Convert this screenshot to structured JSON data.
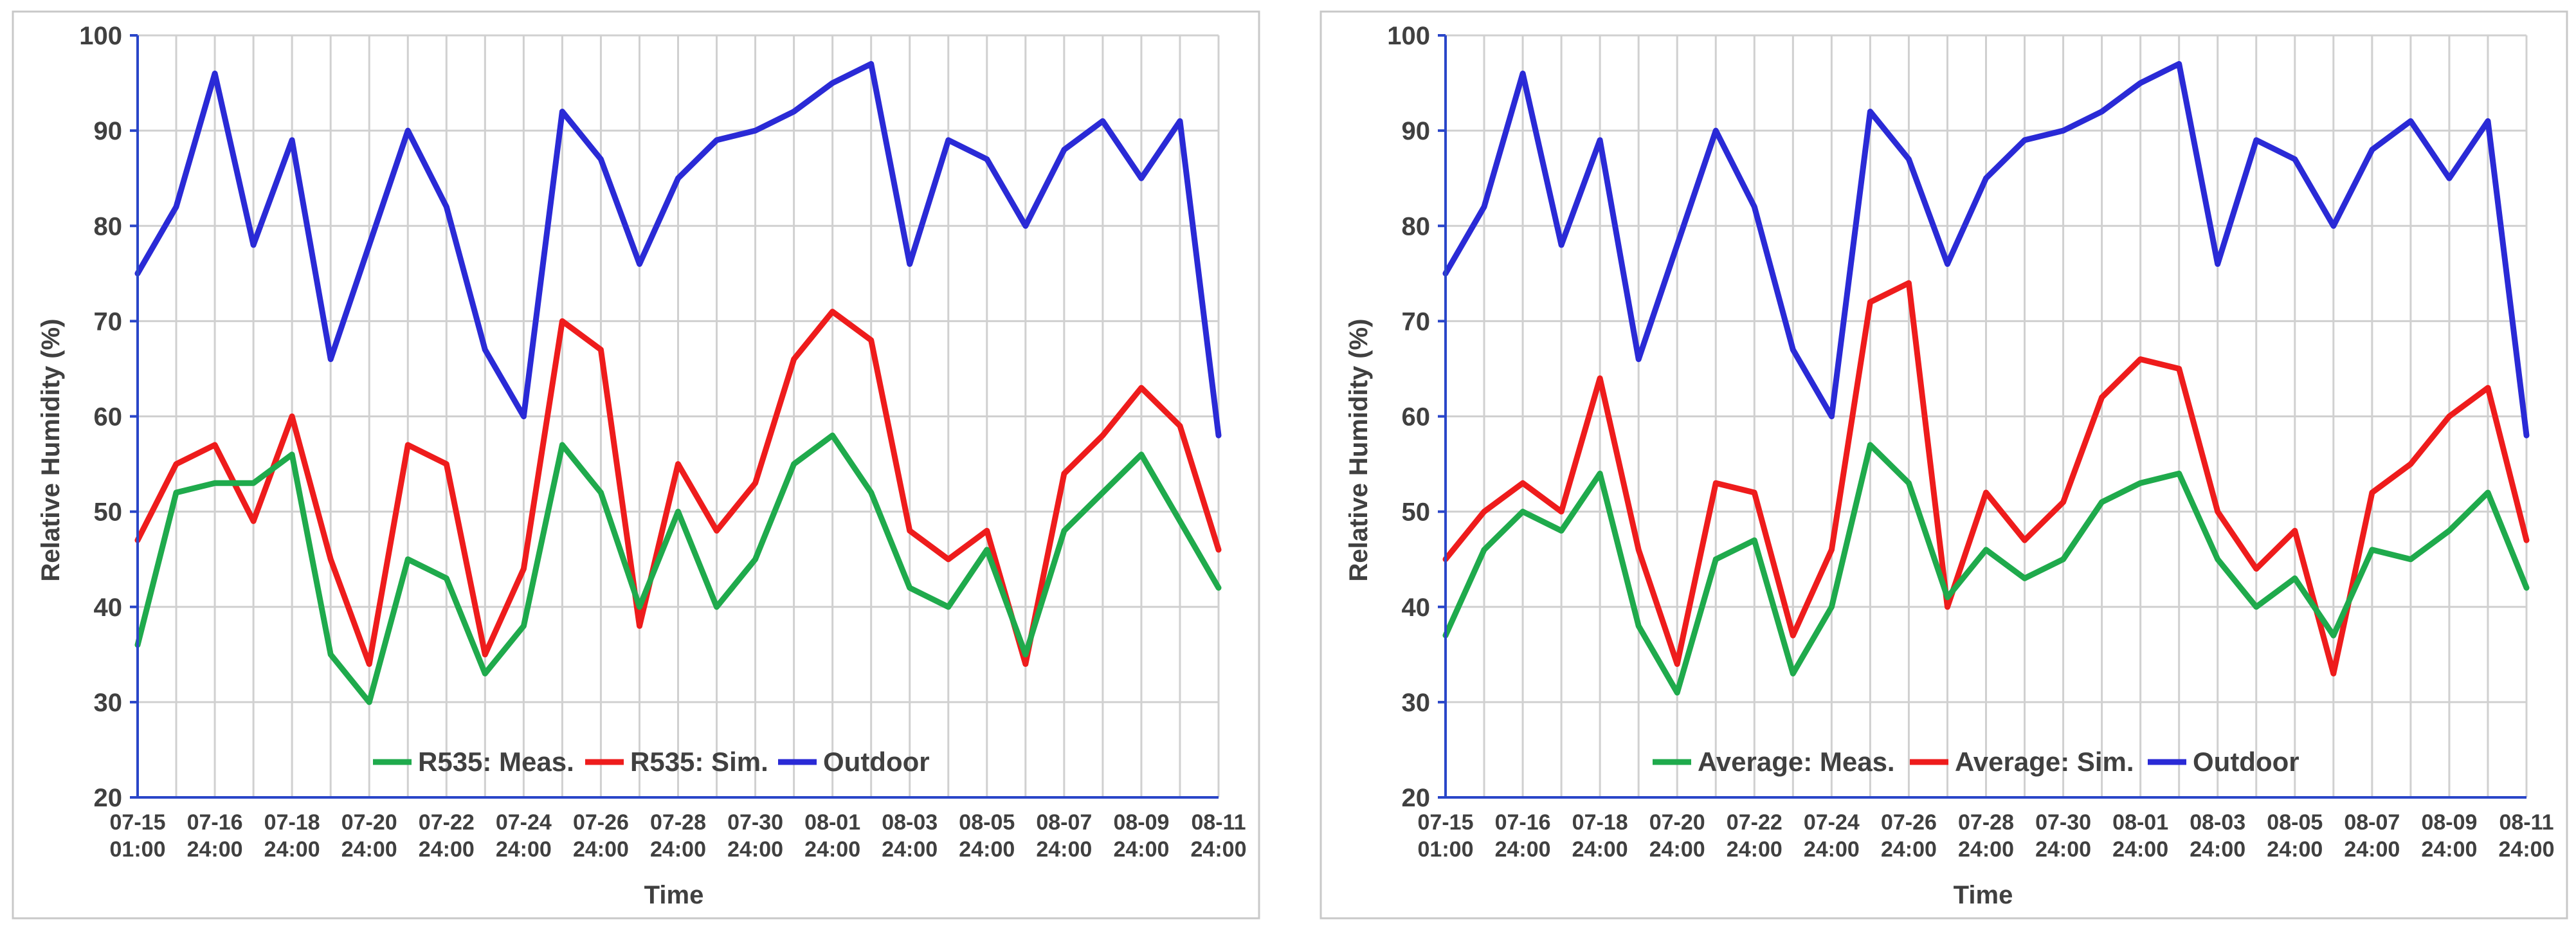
{
  "colors": {
    "meas": "#1faa4c",
    "sim": "#ee1c1c",
    "outdoor": "#2a2ad6"
  },
  "charts": [
    {
      "type": "line",
      "ylabel": "Relative Humidity (%)",
      "xlabel": "Time",
      "ylim": [
        20,
        100
      ],
      "yticks": [
        "20",
        "30",
        "40",
        "50",
        "60",
        "70",
        "80",
        "90",
        "100"
      ],
      "xtick_dates": [
        "07-15",
        "07-16",
        "07-18",
        "07-20",
        "07-22",
        "07-24",
        "07-26",
        "07-28",
        "07-30",
        "08-01",
        "08-03",
        "08-05",
        "08-07",
        "08-09",
        "08-11"
      ],
      "xtick_times": [
        "01:00",
        "24:00",
        "24:00",
        "24:00",
        "24:00",
        "24:00",
        "24:00",
        "24:00",
        "24:00",
        "24:00",
        "24:00",
        "24:00",
        "24:00",
        "24:00",
        "24:00"
      ],
      "legend": [
        "R535: Meas.",
        "R535: Sim.",
        "Outdoor"
      ],
      "x_day": [
        0,
        1,
        2,
        3,
        4,
        5,
        6,
        7,
        8,
        9,
        10,
        11,
        12,
        13,
        14,
        15,
        16,
        17,
        18,
        19,
        20,
        21,
        22,
        23,
        24,
        25,
        26,
        27,
        28
      ],
      "outdoor": [
        75,
        82,
        96,
        78,
        89,
        66,
        78,
        90,
        82,
        67,
        60,
        92,
        87,
        76,
        85,
        89,
        90,
        92,
        95,
        97,
        76,
        89,
        87,
        80,
        88,
        91,
        85,
        91,
        58
      ],
      "meas": [
        36,
        52,
        53,
        53,
        56,
        35,
        30,
        45,
        43,
        33,
        38,
        57,
        52,
        40,
        50,
        40,
        45,
        55,
        58,
        52,
        42,
        40,
        46,
        35,
        48,
        52,
        56,
        49,
        42
      ],
      "sim": [
        47,
        55,
        57,
        49,
        60,
        45,
        34,
        57,
        55,
        35,
        44,
        70,
        67,
        38,
        55,
        48,
        53,
        66,
        71,
        68,
        48,
        45,
        48,
        34,
        54,
        58,
        63,
        59,
        46
      ]
    },
    {
      "type": "line",
      "ylabel": "Relative Humidity (%)",
      "xlabel": "Time",
      "ylim": [
        20,
        100
      ],
      "yticks": [
        "20",
        "30",
        "40",
        "50",
        "60",
        "70",
        "80",
        "90",
        "100"
      ],
      "xtick_dates": [
        "07-15",
        "07-16",
        "07-18",
        "07-20",
        "07-22",
        "07-24",
        "07-26",
        "07-28",
        "07-30",
        "08-01",
        "08-03",
        "08-05",
        "08-07",
        "08-09",
        "08-11"
      ],
      "xtick_times": [
        "01:00",
        "24:00",
        "24:00",
        "24:00",
        "24:00",
        "24:00",
        "24:00",
        "24:00",
        "24:00",
        "24:00",
        "24:00",
        "24:00",
        "24:00",
        "24:00",
        "24:00"
      ],
      "legend": [
        "Average: Meas.",
        "Average: Sim.",
        "Outdoor"
      ],
      "x_day": [
        0,
        1,
        2,
        3,
        4,
        5,
        6,
        7,
        8,
        9,
        10,
        11,
        12,
        13,
        14,
        15,
        16,
        17,
        18,
        19,
        20,
        21,
        22,
        23,
        24,
        25,
        26,
        27,
        28
      ],
      "outdoor": [
        75,
        82,
        96,
        78,
        89,
        66,
        78,
        90,
        82,
        67,
        60,
        92,
        87,
        76,
        85,
        89,
        90,
        92,
        95,
        97,
        76,
        89,
        87,
        80,
        88,
        91,
        85,
        91,
        58
      ],
      "meas": [
        37,
        46,
        50,
        48,
        54,
        38,
        31,
        45,
        47,
        33,
        40,
        57,
        53,
        41,
        46,
        43,
        45,
        51,
        53,
        54,
        45,
        40,
        43,
        37,
        46,
        45,
        48,
        52,
        42
      ],
      "sim": [
        45,
        50,
        53,
        50,
        64,
        46,
        34,
        53,
        52,
        37,
        46,
        72,
        74,
        40,
        52,
        47,
        51,
        62,
        66,
        65,
        50,
        44,
        48,
        33,
        52,
        55,
        60,
        63,
        47
      ]
    }
  ]
}
